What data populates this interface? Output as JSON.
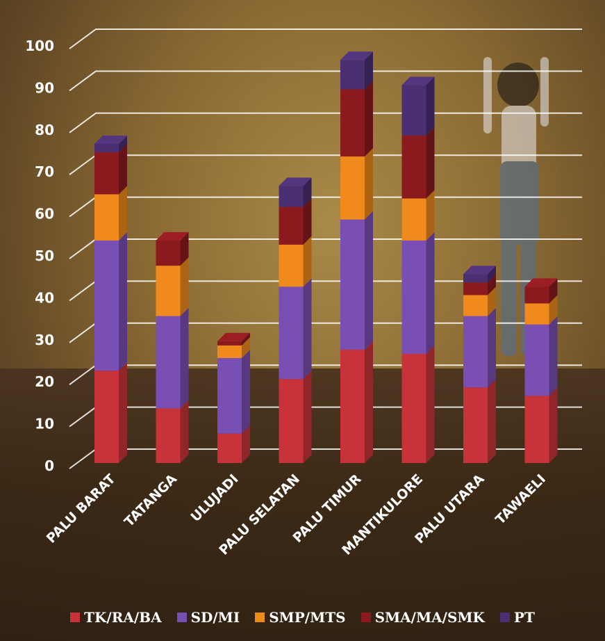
{
  "chart_data": {
    "type": "bar",
    "stacked": true,
    "categories": [
      "PALU BARAT",
      "TATANGA",
      "ULUJADI",
      "PALU SELATAN",
      "PALU TIMUR",
      "MANTIKULORE",
      "PALU UTARA",
      "TAWAELI"
    ],
    "series": [
      {
        "name": "TK/RA/BA",
        "color": "#c8333a",
        "values": [
          22,
          13,
          7,
          20,
          27,
          26,
          18,
          16
        ]
      },
      {
        "name": "SD/MI",
        "color": "#7a4fb3",
        "values": [
          31,
          22,
          18,
          22,
          31,
          27,
          17,
          17
        ]
      },
      {
        "name": "SMP/MTS",
        "color": "#f08a1c",
        "values": [
          11,
          12,
          3,
          10,
          15,
          10,
          5,
          5
        ]
      },
      {
        "name": "SMA/MA/SMK",
        "color": "#8b1a1f",
        "values": [
          10,
          6,
          1,
          9,
          16,
          15,
          3,
          4
        ]
      },
      {
        "name": "PT",
        "color": "#4a2f72",
        "values": [
          2,
          0,
          0,
          5,
          7,
          12,
          2,
          0
        ]
      }
    ],
    "yticks": [
      0,
      10,
      20,
      30,
      40,
      50,
      60,
      70,
      80,
      90,
      100
    ],
    "ylim": [
      0,
      100
    ],
    "grid": true,
    "legend_position": "bottom"
  }
}
